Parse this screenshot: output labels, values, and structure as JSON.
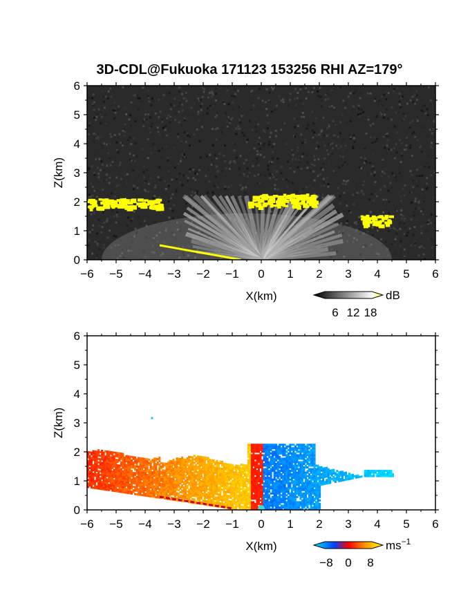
{
  "chart_data": [
    {
      "type": "heatmap",
      "title": "3D-CDL@Fukuoka 171123 153256 RHI AZ=179°",
      "xlabel": "X(km)",
      "ylabel": "Z(km)",
      "xlim": [
        -6,
        6
      ],
      "ylim": [
        0,
        6
      ],
      "xticks": [
        "−6",
        "−5",
        "−4",
        "−3",
        "−2",
        "−1",
        "0",
        "1",
        "2",
        "3",
        "4",
        "5",
        "6"
      ],
      "yticks": [
        "0",
        "1",
        "2",
        "3",
        "4",
        "5",
        "6"
      ],
      "colorbar": {
        "unit": "dB",
        "ticks": [
          "6",
          "12",
          "18"
        ],
        "range": [
          0,
          20
        ]
      },
      "colors": {
        "background": "#2a2a2a",
        "strong": "#ffff00"
      },
      "cloud_layers": [
        {
          "x": [
            -6.0,
            -3.5
          ],
          "z": [
            1.8,
            2.2
          ]
        },
        {
          "x": [
            -0.5,
            1.8
          ],
          "z": [
            1.85,
            2.4
          ]
        },
        {
          "x": [
            3.4,
            4.4
          ],
          "z": [
            1.2,
            1.65
          ]
        }
      ],
      "ground_echo": {
        "x": [
          -3.5,
          -0.7
        ],
        "z": [
          0.0,
          0.5
        ]
      }
    },
    {
      "type": "heatmap",
      "xlabel": "X(km)",
      "ylabel": "Z(km)",
      "xlim": [
        -6,
        6
      ],
      "ylim": [
        0,
        6
      ],
      "xticks": [
        "−6",
        "−5",
        "−4",
        "−3",
        "−2",
        "−1",
        "0",
        "1",
        "2",
        "3",
        "4",
        "5",
        "6"
      ],
      "yticks": [
        "0",
        "1",
        "2",
        "3",
        "4",
        "5",
        "6"
      ],
      "colorbar": {
        "unit": "ms",
        "unit_exp": "−1",
        "ticks": [
          "−8",
          "0",
          "8"
        ],
        "range": [
          -10,
          10
        ]
      },
      "velocity_field": {
        "x": [
          -6.0,
          4.5
        ],
        "z": [
          0.0,
          2.4
        ],
        "toward_negative_x": "positive",
        "toward_positive_x": "negative"
      }
    }
  ]
}
